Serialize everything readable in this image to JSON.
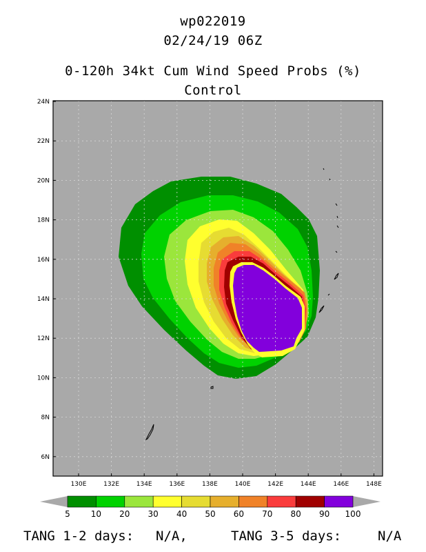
{
  "title": {
    "storm_id": "wp022019",
    "datetime": "02/24/19 06Z",
    "product": "0-120h 34kt Cum Wind Speed Probs (%)",
    "run": "Control"
  },
  "map": {
    "background_color": "#a9a9a9",
    "lat_labels": [
      "24N",
      "22N",
      "20N",
      "18N",
      "16N",
      "14N",
      "12N",
      "10N",
      "8N",
      "6N"
    ],
    "lon_labels": [
      "130E",
      "132E",
      "134E",
      "136E",
      "138E",
      "140E",
      "142E",
      "144E",
      "146E",
      "148E"
    ]
  },
  "legend": {
    "bins": [
      {
        "label": "5",
        "color": "#008f00"
      },
      {
        "label": "10",
        "color": "#00d200"
      },
      {
        "label": "20",
        "color": "#9be63c"
      },
      {
        "label": "30",
        "color": "#ffff2e"
      },
      {
        "label": "40",
        "color": "#e6dc32"
      },
      {
        "label": "50",
        "color": "#e6af2d"
      },
      {
        "label": "60",
        "color": "#f08228"
      },
      {
        "label": "70",
        "color": "#fa3c3c"
      },
      {
        "label": "80",
        "color": "#a00000"
      },
      {
        "label": "90",
        "color": "#8200dc"
      }
    ],
    "end_label": "100",
    "arrow_color": "#a9a9a9"
  },
  "footer": {
    "tang_12_label": "TANG 1-2 days:",
    "tang_12_value": "N/A,",
    "tang_35_label": "TANG 3-5 days:",
    "tang_35_value": "N/A"
  }
}
